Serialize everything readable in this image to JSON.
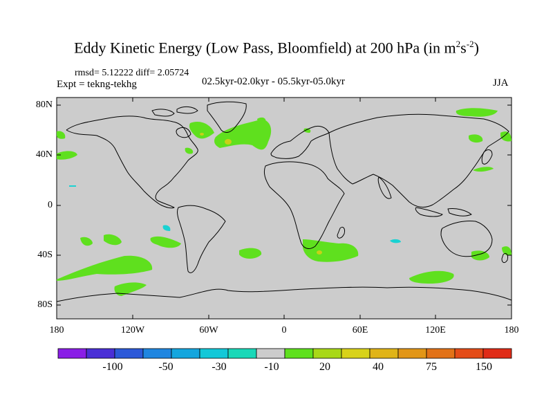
{
  "title": "Eddy Kinetic Energy (Low Pass, Bloomfield) at 200 hPa (in m",
  "title_sup1": "2",
  "title_mid": "s",
  "title_sup2": "-2",
  "title_end": ")",
  "stats_text": "rmsd= 5.12222 diff= 2.05724",
  "expt_text": "Expt = tekng-tekhg",
  "period_text": "02.5kyr-02.0kyr - 05.5kyr-05.0kyr",
  "season": "JJA",
  "y_labels": [
    "80N",
    "40N",
    "0",
    "40S",
    "80S"
  ],
  "x_labels": [
    "180",
    "120W",
    "60W",
    "0",
    "60E",
    "120E",
    "180"
  ],
  "colorbar": {
    "colors": [
      "#8a1ee6",
      "#4a2fd6",
      "#2c59d8",
      "#1f86e0",
      "#14a6de",
      "#12c8d8",
      "#19d8b8",
      "#cccccc",
      "#5fe01e",
      "#a8d818",
      "#d8d21a",
      "#e0b418",
      "#e29618",
      "#e27218",
      "#e44c18",
      "#e02c18"
    ],
    "labels": [
      "-100",
      "-50",
      "-30",
      "-10",
      "20",
      "40",
      "75",
      "150"
    ]
  },
  "palette": {
    "land_ocean": "#cccccc",
    "positive": "#5fe01e",
    "negative": "#1ad2d2",
    "highlight": "#c8d018"
  }
}
